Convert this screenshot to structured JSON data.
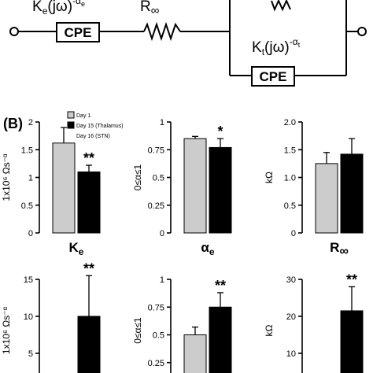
{
  "circuit": {
    "ke_main": "K",
    "ke_sub": "e",
    "ke_arg": "(jω)",
    "ke_sup": "-α",
    "ke_sup_sub": "e",
    "r_main": "R",
    "r_sub": "∞",
    "kt_main": "K",
    "kt_sub": "t",
    "kt_arg": "(jω)",
    "kt_sup": "-α",
    "kt_sup_sub": "t",
    "cpe_label": "CPE"
  },
  "panel_b": {
    "label": "(B)",
    "legend": [
      "Day 1",
      "Day 15 (Thalamus)",
      "Day 16 (STN)"
    ]
  },
  "colors": {
    "day1": "#cccccc",
    "day15": "#000000"
  },
  "chart_data": [
    {
      "type": "bar",
      "row": 1,
      "xlabel_main": "K",
      "xlabel_sub": "e",
      "ylabel": "1x10⁶ Ωs⁻ᵅ",
      "ylim": [
        0,
        2
      ],
      "yticks": [
        "0",
        "0.5",
        "1",
        "1.5",
        "2"
      ],
      "values": [
        1.62,
        1.1
      ],
      "errors": [
        0.28,
        0.12
      ],
      "significance": "**"
    },
    {
      "type": "bar",
      "row": 1,
      "xlabel_main": "α",
      "xlabel_sub": "e",
      "ylabel": "0≤α≤1",
      "ylim": [
        0,
        1
      ],
      "yticks": [
        "0",
        "0.25",
        "0.5",
        "0.75",
        "1"
      ],
      "values": [
        0.85,
        0.77
      ],
      "errors": [
        0.02,
        0.08
      ],
      "significance": "*"
    },
    {
      "type": "bar",
      "row": 1,
      "xlabel_main": "R",
      "xlabel_sub": "∞",
      "ylabel": "kΩ",
      "ylim": [
        0,
        2
      ],
      "yticks": [
        "0",
        "0.5",
        "1.0",
        "1.5",
        "2.0"
      ],
      "values": [
        1.25,
        1.42
      ],
      "errors": [
        0.2,
        0.28
      ],
      "significance": ""
    },
    {
      "type": "bar",
      "row": 2,
      "xlabel_main": "",
      "xlabel_sub": "",
      "ylabel": "1x10⁶ Ωs⁻ᵅ",
      "ylim": [
        0,
        15
      ],
      "yticks": [
        "5",
        "10",
        "15"
      ],
      "values": [
        null,
        10
      ],
      "errors": [
        null,
        5.5
      ],
      "significance": "**"
    },
    {
      "type": "bar",
      "row": 2,
      "xlabel_main": "",
      "xlabel_sub": "",
      "ylabel": "0≤α≤1",
      "ylim": [
        0,
        1
      ],
      "yticks": [
        "0.25",
        "0.5",
        "0.75",
        "1"
      ],
      "values": [
        0.5,
        0.75
      ],
      "errors": [
        0.07,
        0.13
      ],
      "significance": "**"
    },
    {
      "type": "bar",
      "row": 2,
      "xlabel_main": "",
      "xlabel_sub": "",
      "ylabel": "kΩ",
      "ylim": [
        0,
        30
      ],
      "yticks": [
        "10",
        "20",
        "30"
      ],
      "values": [
        null,
        21.5
      ],
      "errors": [
        null,
        6.5
      ],
      "significance": "**"
    }
  ]
}
